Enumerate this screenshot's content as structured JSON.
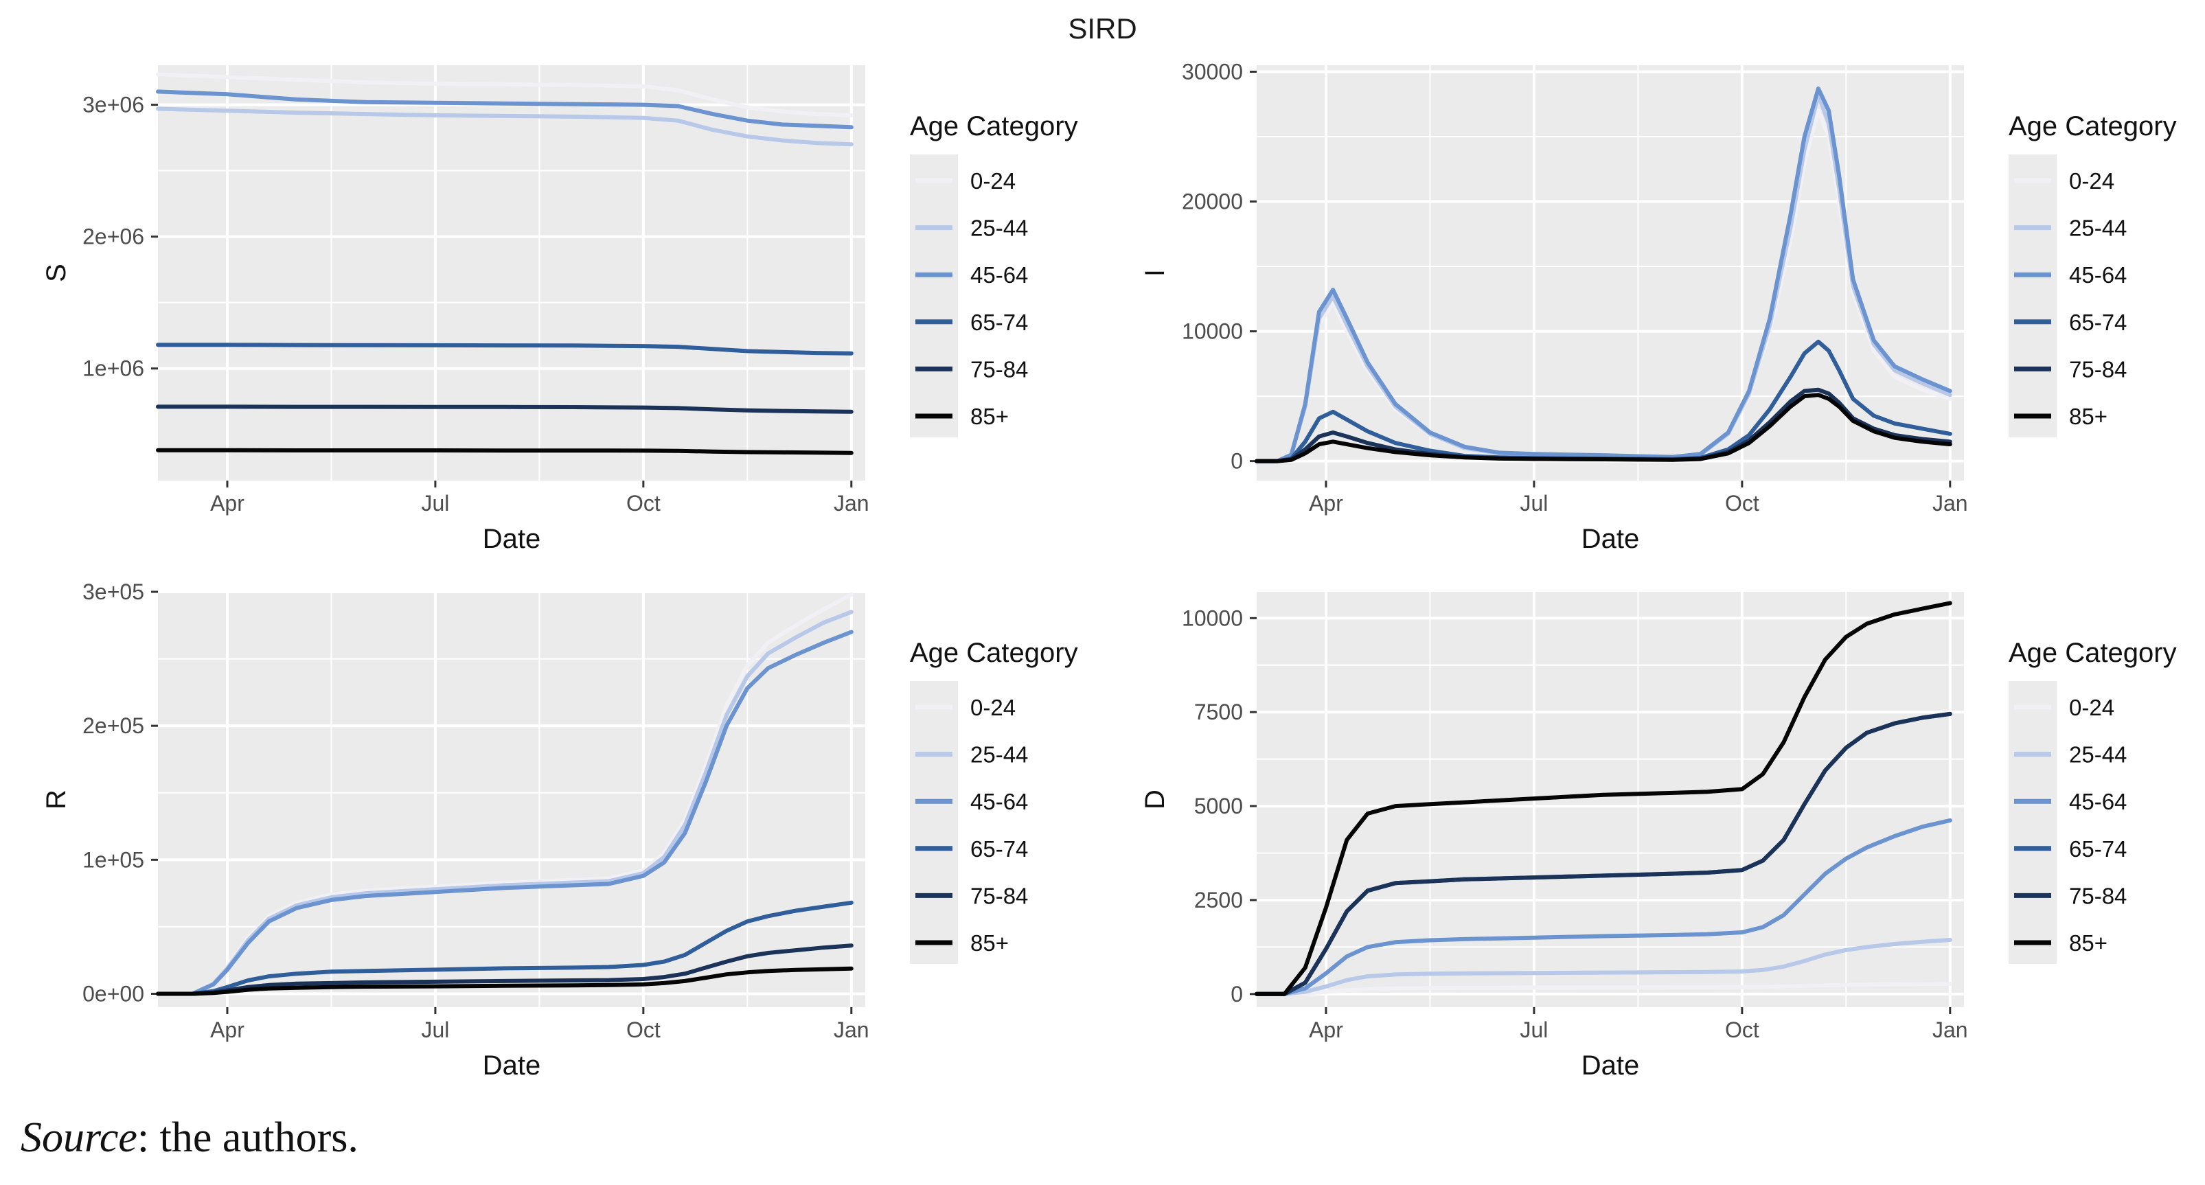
{
  "title": "SIRD",
  "source": {
    "label": "Source",
    "rest": ": the authors."
  },
  "colors": {
    "0-24": "#f0f0f5",
    "25-44": "#b8c8e8",
    "45-64": "#6a93cf",
    "65-74": "#2f5e9a",
    "75-84": "#1b3358",
    "85+": "#050505",
    "panel": "#ebebeb",
    "grid": "#ffffff"
  },
  "chart_data": [
    {
      "type": "line",
      "ylabel": "S",
      "xlabel": "Date",
      "legend_title": "Age Category",
      "legend_position": "right",
      "grid": true,
      "xlim": [
        0,
        10.2
      ],
      "ylim": [
        150000,
        3300000
      ],
      "xticks": [
        {
          "pos": 1,
          "label": "Apr"
        },
        {
          "pos": 4,
          "label": "Jul"
        },
        {
          "pos": 7,
          "label": "Oct"
        },
        {
          "pos": 10,
          "label": "Jan"
        }
      ],
      "yticks": [
        {
          "v": 1000000,
          "label": "1e+06"
        },
        {
          "v": 2000000,
          "label": "2e+06"
        },
        {
          "v": 3000000,
          "label": "3e+06"
        }
      ],
      "x": [
        0,
        1,
        2,
        3,
        4,
        5,
        6,
        7,
        7.5,
        8,
        8.5,
        9,
        9.5,
        10
      ],
      "series": [
        {
          "name": "0-24",
          "values": [
            3230000,
            3210000,
            3190000,
            3170000,
            3160000,
            3155000,
            3150000,
            3140000,
            3110000,
            3040000,
            2980000,
            2950000,
            2930000,
            2920000
          ]
        },
        {
          "name": "25-44",
          "values": [
            2970000,
            2955000,
            2940000,
            2930000,
            2920000,
            2915000,
            2910000,
            2900000,
            2880000,
            2810000,
            2760000,
            2730000,
            2710000,
            2700000
          ]
        },
        {
          "name": "45-64",
          "values": [
            3100000,
            3080000,
            3040000,
            3020000,
            3015000,
            3010000,
            3005000,
            3000000,
            2990000,
            2930000,
            2880000,
            2850000,
            2840000,
            2830000
          ]
        },
        {
          "name": "65-74",
          "values": [
            1180000,
            1180000,
            1178000,
            1177000,
            1176000,
            1175000,
            1174000,
            1170000,
            1165000,
            1148000,
            1132000,
            1125000,
            1118000,
            1115000
          ]
        },
        {
          "name": "75-84",
          "values": [
            710000,
            710000,
            709000,
            709000,
            708000,
            708000,
            707000,
            704000,
            700000,
            690000,
            682000,
            678000,
            675000,
            672000
          ]
        },
        {
          "name": "85+",
          "values": [
            380000,
            380000,
            379000,
            379000,
            379000,
            378000,
            378000,
            377000,
            375000,
            370000,
            366000,
            364000,
            362000,
            360000
          ]
        }
      ]
    },
    {
      "type": "line",
      "ylabel": "I",
      "xlabel": "Date",
      "legend_title": "Age Category",
      "legend_position": "right",
      "grid": true,
      "xlim": [
        0,
        10.2
      ],
      "ylim": [
        -1500,
        30500
      ],
      "xticks": [
        {
          "pos": 1,
          "label": "Apr"
        },
        {
          "pos": 4,
          "label": "Jul"
        },
        {
          "pos": 7,
          "label": "Oct"
        },
        {
          "pos": 10,
          "label": "Jan"
        }
      ],
      "yticks": [
        {
          "v": 0,
          "label": "0"
        },
        {
          "v": 10000,
          "label": "10000"
        },
        {
          "v": 20000,
          "label": "20000"
        },
        {
          "v": 30000,
          "label": "30000"
        }
      ],
      "x": [
        0,
        0.3,
        0.5,
        0.7,
        0.9,
        1.1,
        1.3,
        1.6,
        2,
        2.5,
        3,
        3.5,
        4,
        4.5,
        5,
        5.5,
        6,
        6.4,
        6.8,
        7.1,
        7.4,
        7.7,
        7.9,
        8.1,
        8.25,
        8.4,
        8.6,
        8.9,
        9.2,
        9.6,
        10
      ],
      "series": [
        {
          "name": "0-24",
          "values": [
            0,
            0,
            500,
            4000,
            10500,
            12200,
            10000,
            7000,
            4000,
            2000,
            1000,
            600,
            500,
            450,
            400,
            350,
            300,
            500,
            2000,
            5000,
            10000,
            17000,
            23000,
            27000,
            25000,
            20000,
            13000,
            8500,
            6500,
            5500,
            4800
          ]
        },
        {
          "name": "25-44",
          "values": [
            0,
            0,
            500,
            4200,
            11000,
            12700,
            10500,
            7300,
            4200,
            2100,
            1000,
            600,
            500,
            450,
            400,
            350,
            300,
            500,
            2100,
            5200,
            10500,
            18000,
            24000,
            28200,
            26000,
            21000,
            13500,
            9000,
            7000,
            6000,
            5100
          ]
        },
        {
          "name": "45-64",
          "values": [
            0,
            0,
            500,
            4400,
            11500,
            13200,
            11000,
            7600,
            4400,
            2200,
            1100,
            650,
            550,
            500,
            450,
            380,
            320,
            550,
            2200,
            5400,
            11000,
            19000,
            25000,
            28700,
            27000,
            22000,
            14000,
            9300,
            7300,
            6300,
            5400
          ]
        },
        {
          "name": "65-74",
          "values": [
            0,
            0,
            200,
            1500,
            3300,
            3800,
            3200,
            2300,
            1400,
            800,
            400,
            280,
            230,
            210,
            190,
            170,
            150,
            250,
            900,
            2000,
            4000,
            6500,
            8300,
            9200,
            8500,
            7000,
            4800,
            3500,
            2900,
            2500,
            2100
          ]
        },
        {
          "name": "75-84",
          "values": [
            0,
            0,
            150,
            900,
            1900,
            2200,
            1900,
            1400,
            900,
            550,
            300,
            220,
            180,
            160,
            150,
            130,
            110,
            180,
            700,
            1600,
            3000,
            4600,
            5400,
            5500,
            5200,
            4500,
            3300,
            2500,
            2000,
            1700,
            1500
          ]
        },
        {
          "name": "85+",
          "values": [
            0,
            0,
            100,
            600,
            1300,
            1500,
            1300,
            1000,
            700,
            450,
            280,
            200,
            170,
            150,
            140,
            120,
            100,
            160,
            600,
            1400,
            2700,
            4200,
            5000,
            5100,
            4800,
            4200,
            3100,
            2300,
            1800,
            1500,
            1300
          ]
        }
      ]
    },
    {
      "type": "line",
      "ylabel": "R",
      "xlabel": "Date",
      "legend_title": "Age Category",
      "legend_position": "right",
      "grid": true,
      "xlim": [
        0,
        10.2
      ],
      "ylim": [
        -10000,
        300000
      ],
      "xticks": [
        {
          "pos": 1,
          "label": "Apr"
        },
        {
          "pos": 4,
          "label": "Jul"
        },
        {
          "pos": 7,
          "label": "Oct"
        },
        {
          "pos": 10,
          "label": "Jan"
        }
      ],
      "yticks": [
        {
          "v": 0,
          "label": "0e+00"
        },
        {
          "v": 100000,
          "label": "1e+05"
        },
        {
          "v": 200000,
          "label": "2e+05"
        },
        {
          "v": 300000,
          "label": "3e+05"
        }
      ],
      "x": [
        0,
        0.5,
        0.8,
        1,
        1.3,
        1.6,
        2,
        2.5,
        3,
        4,
        5,
        6,
        6.5,
        7,
        7.3,
        7.6,
        7.9,
        8.2,
        8.5,
        8.8,
        9.2,
        9.6,
        10
      ],
      "series": [
        {
          "name": "0-24",
          "values": [
            0,
            0,
            8000,
            20000,
            42000,
            58000,
            68000,
            74000,
            77000,
            80000,
            83000,
            85000,
            86000,
            92000,
            105000,
            130000,
            170000,
            215000,
            245000,
            262000,
            275000,
            287000,
            298000
          ]
        },
        {
          "name": "25-44",
          "values": [
            0,
            0,
            7500,
            19000,
            40000,
            56000,
            66000,
            72000,
            75000,
            78000,
            81000,
            83000,
            84000,
            90000,
            102000,
            126000,
            165000,
            208000,
            237000,
            254000,
            266000,
            277000,
            285000
          ]
        },
        {
          "name": "45-64",
          "values": [
            0,
            0,
            7000,
            18000,
            38000,
            54000,
            64000,
            70000,
            73000,
            76000,
            79000,
            81000,
            82000,
            88000,
            98000,
            120000,
            158000,
            200000,
            228000,
            243000,
            253000,
            262000,
            270000
          ]
        },
        {
          "name": "65-74",
          "values": [
            0,
            0,
            2000,
            5000,
            10000,
            13000,
            15000,
            16500,
            17000,
            18000,
            19000,
            19500,
            20000,
            21500,
            24000,
            29000,
            38000,
            47000,
            54000,
            58000,
            62000,
            65000,
            68000
          ]
        },
        {
          "name": "75-84",
          "values": [
            0,
            0,
            1000,
            2500,
            5000,
            6500,
            7500,
            8000,
            8500,
            9000,
            9500,
            10000,
            10200,
            11000,
            12500,
            15000,
            19500,
            24000,
            28000,
            30500,
            32500,
            34500,
            36000
          ]
        },
        {
          "name": "85+",
          "values": [
            0,
            0,
            600,
            1500,
            3000,
            4000,
            4500,
            5000,
            5300,
            5600,
            6000,
            6300,
            6500,
            7000,
            8000,
            9500,
            12000,
            14500,
            16000,
            17000,
            17800,
            18300,
            18800
          ]
        }
      ]
    },
    {
      "type": "line",
      "ylabel": "D",
      "xlabel": "Date",
      "legend_title": "Age Category",
      "legend_position": "right",
      "grid": true,
      "xlim": [
        0,
        10.2
      ],
      "ylim": [
        -350,
        10700
      ],
      "xticks": [
        {
          "pos": 1,
          "label": "Apr"
        },
        {
          "pos": 4,
          "label": "Jul"
        },
        {
          "pos": 7,
          "label": "Oct"
        },
        {
          "pos": 10,
          "label": "Jan"
        }
      ],
      "yticks": [
        {
          "v": 0,
          "label": "0"
        },
        {
          "v": 2500,
          "label": "2500"
        },
        {
          "v": 5000,
          "label": "5000"
        },
        {
          "v": 7500,
          "label": "7500"
        },
        {
          "v": 10000,
          "label": "10000"
        }
      ],
      "x": [
        0,
        0.4,
        0.7,
        1,
        1.3,
        1.6,
        2,
        2.5,
        3,
        4,
        5,
        6,
        6.5,
        7,
        7.3,
        7.6,
        7.9,
        8.2,
        8.5,
        8.8,
        9.2,
        9.6,
        10
      ],
      "series": [
        {
          "name": "0-24",
          "values": [
            0,
            0,
            20,
            60,
            100,
            130,
            150,
            160,
            165,
            170,
            175,
            180,
            180,
            185,
            190,
            200,
            215,
            230,
            240,
            250,
            258,
            265,
            270
          ]
        },
        {
          "name": "25-44",
          "values": [
            0,
            0,
            60,
            200,
            370,
            470,
            520,
            540,
            550,
            560,
            570,
            580,
            585,
            600,
            640,
            730,
            880,
            1050,
            1170,
            1250,
            1330,
            1390,
            1440
          ]
        },
        {
          "name": "45-64",
          "values": [
            0,
            0,
            150,
            550,
            1000,
            1250,
            1380,
            1430,
            1460,
            1500,
            1540,
            1570,
            1590,
            1640,
            1780,
            2100,
            2650,
            3200,
            3600,
            3900,
            4200,
            4450,
            4620
          ]
        },
        {
          "name": "65-74",
          "values": [
            0,
            0,
            300,
            1200,
            2200,
            2750,
            2950,
            3000,
            3050,
            3100,
            3150,
            3200,
            3230,
            3300,
            3550,
            4100,
            5050,
            5950,
            6550,
            6950,
            7200,
            7350,
            7450
          ]
        },
        {
          "name": "75-84",
          "values": [
            0,
            0,
            300,
            1200,
            2200,
            2750,
            2950,
            3000,
            3050,
            3100,
            3150,
            3200,
            3230,
            3300,
            3550,
            4100,
            5050,
            5950,
            6550,
            6950,
            7200,
            7350,
            7450
          ]
        },
        {
          "name": "85+",
          "values": [
            0,
            0,
            700,
            2300,
            4100,
            4800,
            5000,
            5050,
            5100,
            5200,
            5300,
            5350,
            5380,
            5450,
            5850,
            6700,
            7900,
            8900,
            9500,
            9850,
            10100,
            10250,
            10400
          ]
        }
      ]
    }
  ],
  "legend_items": [
    "0-24",
    "25-44",
    "45-64",
    "65-74",
    "75-84",
    "85+"
  ]
}
